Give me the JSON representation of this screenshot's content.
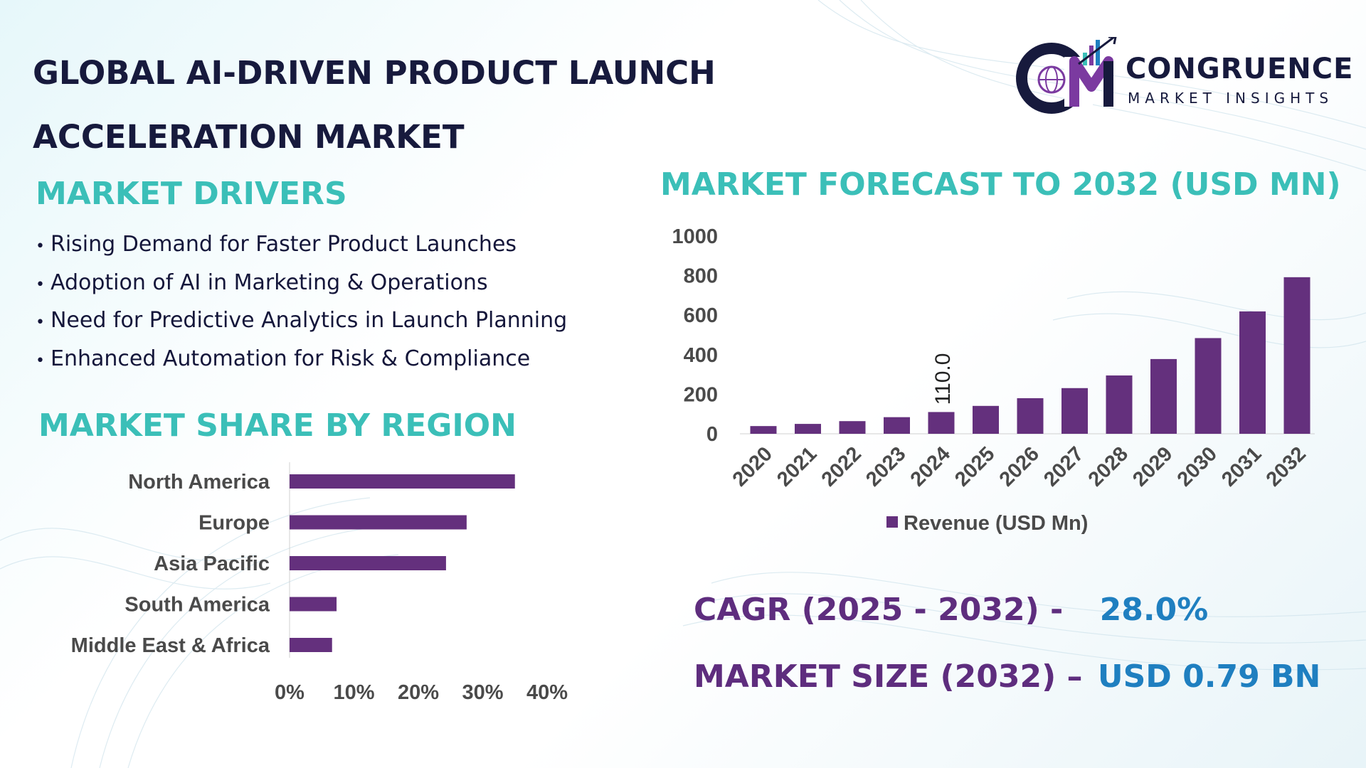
{
  "header": {
    "title": "GLOBAL AI-DRIVEN PRODUCT LAUNCH ACCELERATION MARKET",
    "logo_name": "CONGRUENCE",
    "logo_tagline": "MARKET INSIGHTS"
  },
  "drivers": {
    "heading": "MARKET DRIVERS",
    "items": [
      "Rising Demand for Faster Product Launches",
      "Adoption of AI in Marketing & Operations",
      "Need for Predictive Analytics in Launch Planning",
      "Enhanced Automation for Risk & Compliance"
    ]
  },
  "region": {
    "heading": "MARKET SHARE BY REGION"
  },
  "forecast": {
    "heading": "MARKET FORECAST TO 2032 (USD MN)"
  },
  "kpis": {
    "cagr_label": "CAGR (2025 - 2032) -",
    "cagr_value": "28.0%",
    "size_label": "MARKET SIZE (2032) –",
    "size_value": "USD 0.79 BN"
  },
  "colors": {
    "bar": "#64307d",
    "heading": "#3bbfb8",
    "title": "#171a3d",
    "kpi_label": "#5e2d7e",
    "kpi_value": "#1f7fc0"
  },
  "chart_data": [
    {
      "type": "bar",
      "orientation": "horizontal",
      "title": "MARKET SHARE BY REGION",
      "categories": [
        "North America",
        "Europe",
        "Asia Pacific",
        "South America",
        "Middle East & Africa"
      ],
      "values": [
        35,
        27.5,
        24.3,
        7.3,
        6.6
      ],
      "xlim": [
        0,
        40
      ],
      "xticks": [
        "0%",
        "10%",
        "20%",
        "30%",
        "40%"
      ],
      "grid": false
    },
    {
      "type": "bar",
      "title": "MARKET FORECAST TO 2032 (USD MN)",
      "categories": [
        "2020",
        "2021",
        "2022",
        "2023",
        "2024",
        "2025",
        "2026",
        "2027",
        "2028",
        "2029",
        "2030",
        "2031",
        "2032"
      ],
      "series": [
        {
          "name": "Revenue (USD Mn)",
          "values": [
            39,
            50,
            64,
            84,
            110,
            141,
            180,
            231,
            295,
            378,
            484,
            619,
            792
          ]
        }
      ],
      "ylim": [
        0,
        1000
      ],
      "yticks": [
        "0",
        "200",
        "400",
        "600",
        "800",
        "1000"
      ],
      "data_labels": [
        {
          "category": "2024",
          "text": "110.0"
        }
      ],
      "legend": "bottom",
      "grid": false
    }
  ]
}
